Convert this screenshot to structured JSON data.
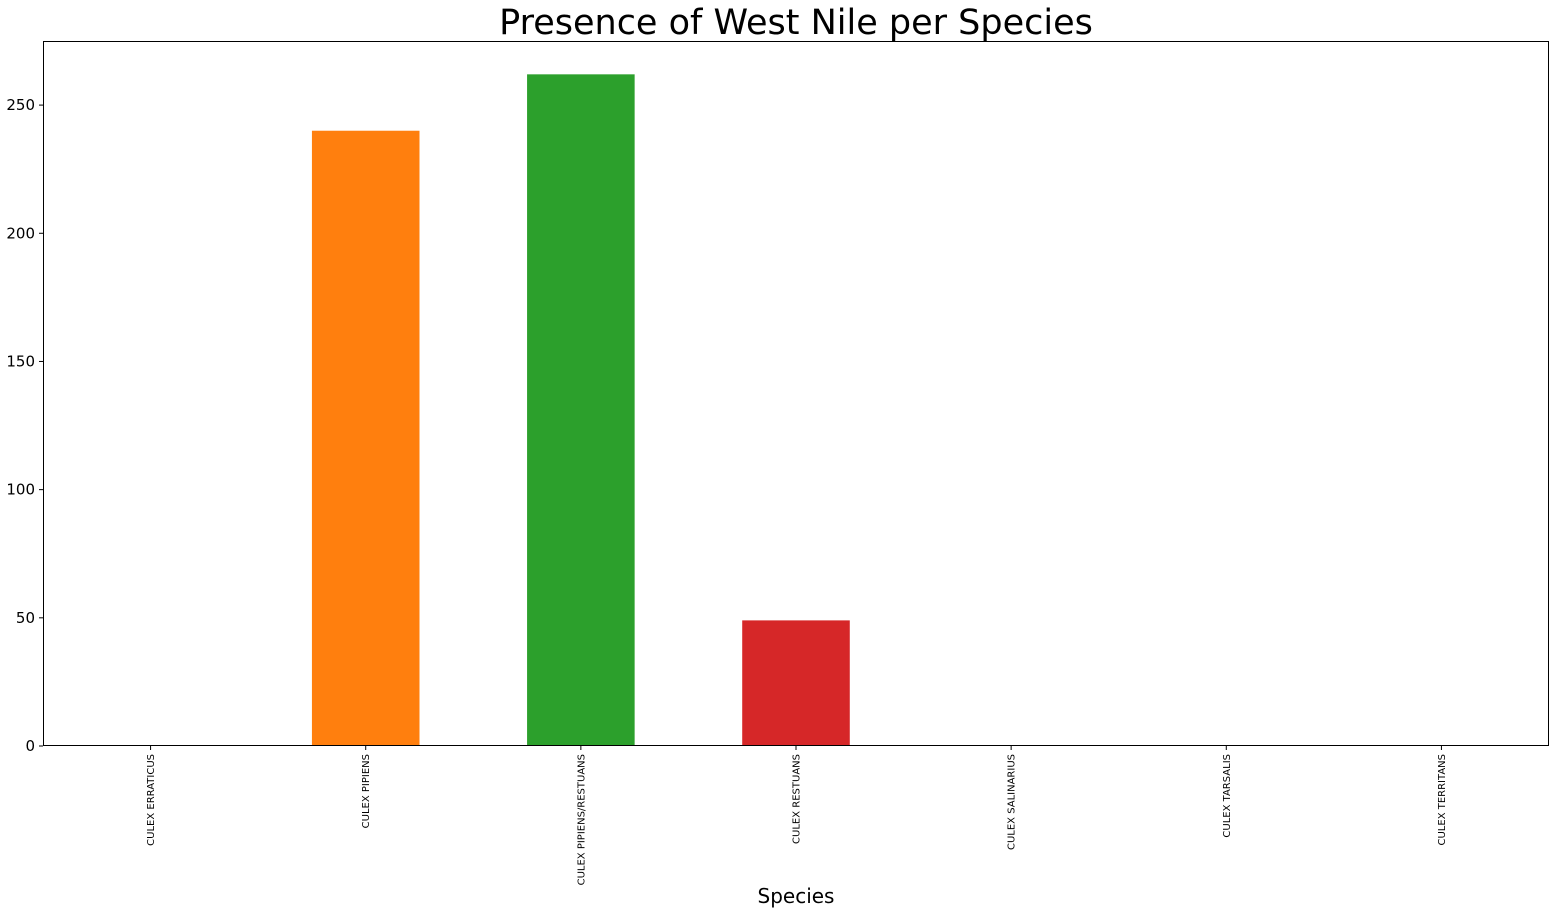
{
  "chart_data": {
    "type": "bar",
    "title": "Presence of West Nile per Species",
    "xlabel": "Species",
    "ylabel": "",
    "categories": [
      "CULEX ERRATICUS",
      "CULEX PIPIENS",
      "CULEX PIPIENS/RESTUANS",
      "CULEX RESTUANS",
      "CULEX SALINARIUS",
      "CULEX TARSALIS",
      "CULEX TERRITANS"
    ],
    "values": [
      0,
      240,
      262,
      49,
      0,
      0,
      0
    ],
    "colors": [
      "#1f77b4",
      "#ff7f0e",
      "#2ca02c",
      "#d62728",
      "#9467bd",
      "#8c564b",
      "#e377c2"
    ],
    "ylim": [
      0,
      275
    ],
    "yticks": [
      0,
      50,
      100,
      150,
      200,
      250
    ],
    "grid": false,
    "legend": false
  }
}
